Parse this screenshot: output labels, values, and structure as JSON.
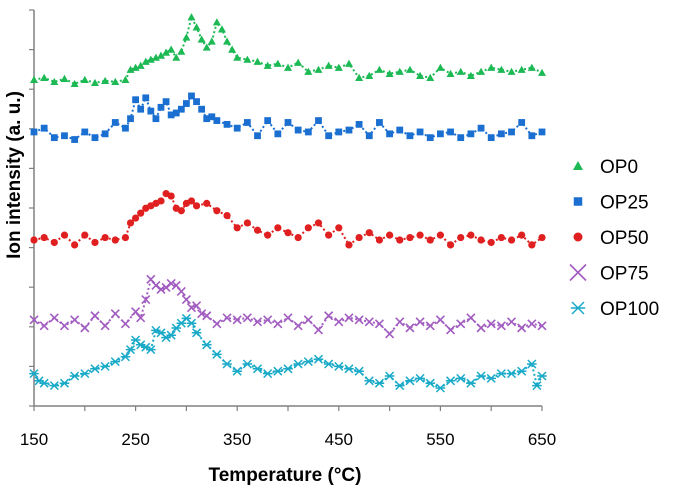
{
  "chart_data": {
    "type": "line",
    "title": "",
    "xlabel": "Temperature (°C)",
    "ylabel": "Ion intensity (a. u.)",
    "xlim": [
      150,
      650
    ],
    "xticks": [
      150,
      250,
      350,
      450,
      550,
      650
    ],
    "yticks_shown": false,
    "grid": false,
    "legend_position": "right",
    "colors": {
      "axis": "#808080",
      "text": "#000000"
    },
    "series": [
      {
        "name": "OP0",
        "marker": "triangle",
        "color": "#1DB954",
        "offset": 0,
        "x": [
          150,
          160,
          170,
          180,
          190,
          200,
          210,
          220,
          230,
          240,
          245,
          250,
          255,
          260,
          265,
          270,
          275,
          280,
          285,
          290,
          295,
          300,
          305,
          310,
          315,
          320,
          325,
          330,
          335,
          340,
          345,
          350,
          360,
          370,
          380,
          390,
          400,
          410,
          420,
          430,
          440,
          450,
          460,
          470,
          480,
          490,
          500,
          510,
          520,
          530,
          540,
          550,
          560,
          570,
          580,
          590,
          600,
          610,
          620,
          630,
          640,
          650
        ],
        "y": [
          48,
          50,
          46,
          49,
          44,
          48,
          45,
          47,
          46,
          48,
          58,
          60,
          62,
          66,
          68,
          70,
          72,
          75,
          78,
          70,
          76,
          90,
          110,
          100,
          88,
          80,
          86,
          105,
          98,
          86,
          78,
          70,
          68,
          66,
          62,
          64,
          60,
          65,
          56,
          58,
          62,
          60,
          64,
          50,
          52,
          58,
          54,
          56,
          58,
          52,
          50,
          60,
          54,
          56,
          52,
          56,
          60,
          58,
          56,
          58,
          60,
          55
        ]
      },
      {
        "name": "OP25",
        "marker": "square",
        "color": "#1A6FD1",
        "offset": 0,
        "x": [
          150,
          160,
          170,
          180,
          190,
          200,
          210,
          220,
          230,
          240,
          245,
          250,
          255,
          260,
          265,
          270,
          275,
          280,
          285,
          290,
          295,
          300,
          305,
          310,
          315,
          320,
          325,
          330,
          340,
          350,
          360,
          370,
          380,
          390,
          400,
          410,
          420,
          430,
          440,
          450,
          460,
          470,
          480,
          490,
          500,
          510,
          520,
          530,
          540,
          550,
          560,
          570,
          580,
          590,
          600,
          610,
          620,
          630,
          640,
          650
        ],
        "y": [
          86,
          90,
          80,
          82,
          78,
          86,
          80,
          84,
          96,
          90,
          100,
          120,
          110,
          122,
          108,
          100,
          112,
          118,
          104,
          106,
          110,
          116,
          124,
          118,
          110,
          100,
          102,
          98,
          94,
          90,
          96,
          82,
          98,
          84,
          96,
          88,
          86,
          98,
          82,
          86,
          88,
          94,
          82,
          96,
          84,
          88,
          82,
          86,
          80,
          84,
          86,
          80,
          84,
          90,
          80,
          84,
          86,
          96,
          82,
          86
        ]
      },
      {
        "name": "OP50",
        "marker": "circle",
        "color": "#E02020",
        "offset": 0,
        "x": [
          150,
          160,
          170,
          180,
          190,
          200,
          210,
          220,
          230,
          240,
          245,
          250,
          255,
          260,
          265,
          270,
          275,
          280,
          285,
          290,
          295,
          300,
          305,
          310,
          320,
          330,
          340,
          350,
          360,
          370,
          380,
          390,
          400,
          410,
          420,
          430,
          440,
          450,
          460,
          470,
          480,
          490,
          500,
          510,
          520,
          530,
          540,
          550,
          560,
          570,
          580,
          590,
          600,
          610,
          620,
          630,
          640,
          650
        ],
        "y": [
          48,
          50,
          46,
          52,
          44,
          52,
          46,
          50,
          48,
          50,
          62,
          66,
          70,
          74,
          76,
          78,
          80,
          86,
          84,
          74,
          72,
          78,
          80,
          76,
          78,
          72,
          68,
          58,
          62,
          56,
          52,
          58,
          54,
          50,
          58,
          62,
          52,
          58,
          44,
          50,
          54,
          48,
          52,
          48,
          50,
          52,
          48,
          52,
          44,
          50,
          52,
          48,
          46,
          50,
          48,
          52,
          44,
          50
        ]
      },
      {
        "name": "OP75",
        "marker": "x",
        "color": "#A15CC0",
        "offset": 0,
        "x": [
          150,
          160,
          170,
          180,
          190,
          200,
          210,
          220,
          230,
          240,
          250,
          255,
          260,
          265,
          270,
          275,
          280,
          285,
          290,
          295,
          300,
          305,
          310,
          315,
          320,
          330,
          340,
          350,
          360,
          370,
          380,
          390,
          400,
          410,
          420,
          430,
          440,
          450,
          460,
          470,
          480,
          490,
          500,
          510,
          520,
          530,
          540,
          550,
          560,
          570,
          580,
          590,
          600,
          610,
          620,
          630,
          640,
          650
        ],
        "y": [
          50,
          44,
          52,
          44,
          50,
          42,
          54,
          44,
          56,
          46,
          58,
          52,
          70,
          90,
          84,
          80,
          82,
          86,
          84,
          78,
          70,
          62,
          64,
          56,
          54,
          46,
          52,
          50,
          52,
          48,
          50,
          46,
          52,
          44,
          50,
          40,
          54,
          48,
          52,
          50,
          48,
          46,
          36,
          48,
          42,
          48,
          44,
          50,
          40,
          46,
          52,
          42,
          46,
          44,
          48,
          42,
          46,
          44
        ]
      },
      {
        "name": "OP100",
        "marker": "asterisk",
        "color": "#1AAAC8",
        "offset": 0,
        "x": [
          150,
          155,
          160,
          170,
          180,
          190,
          200,
          210,
          220,
          230,
          240,
          245,
          250,
          255,
          260,
          265,
          270,
          275,
          280,
          285,
          290,
          295,
          300,
          305,
          310,
          320,
          330,
          340,
          350,
          360,
          370,
          380,
          390,
          400,
          410,
          420,
          430,
          440,
          450,
          460,
          470,
          480,
          490,
          500,
          510,
          520,
          530,
          540,
          550,
          560,
          570,
          580,
          590,
          600,
          610,
          620,
          630,
          640,
          645,
          650
        ],
        "y": [
          62,
          56,
          54,
          52,
          54,
          60,
          62,
          66,
          68,
          72,
          76,
          82,
          90,
          86,
          84,
          82,
          98,
          96,
          92,
          94,
          100,
          104,
          108,
          104,
          96,
          86,
          78,
          70,
          64,
          70,
          66,
          62,
          64,
          66,
          70,
          72,
          74,
          70,
          68,
          66,
          64,
          56,
          54,
          60,
          52,
          56,
          58,
          54,
          50,
          56,
          58,
          54,
          60,
          58,
          62,
          62,
          64,
          70,
          52,
          60
        ]
      }
    ]
  }
}
